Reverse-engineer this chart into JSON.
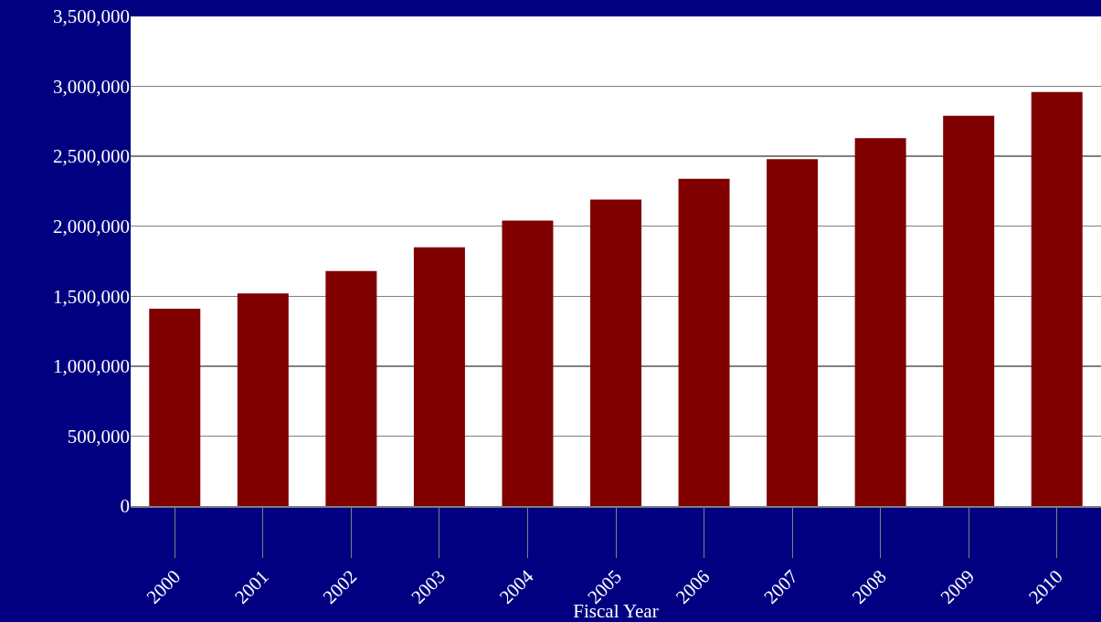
{
  "chart_data": {
    "type": "bar",
    "xlabel": "Fiscal Year",
    "categories": [
      "2000",
      "2001",
      "2002",
      "2003",
      "2004",
      "2005",
      "2006",
      "2007",
      "2008",
      "2009",
      "2010"
    ],
    "values": [
      1410000,
      1520000,
      1680000,
      1850000,
      2040000,
      2190000,
      2340000,
      2480000,
      2630000,
      2790000,
      2960000
    ],
    "color": "#800000",
    "ylim": [
      0,
      3500000
    ],
    "yticks": [
      {
        "value": 0,
        "label": "0"
      },
      {
        "value": 500000,
        "label": "500,000"
      },
      {
        "value": 1000000,
        "label": "1,000,000"
      },
      {
        "value": 1500000,
        "label": "1,500,000"
      },
      {
        "value": 2000000,
        "label": "2,000,000"
      },
      {
        "value": 2500000,
        "label": "2,500,000"
      },
      {
        "value": 3000000,
        "label": "3,000,000"
      },
      {
        "value": 3500000,
        "label": "3,500,000"
      }
    ],
    "grid": "y",
    "legend": false
  }
}
